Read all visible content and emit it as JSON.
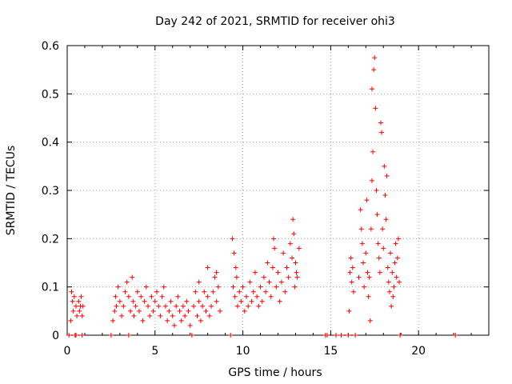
{
  "chart_data": {
    "type": "scatter",
    "title": "Day 242 of 2021, SRMTID for receiver ohi3",
    "xlabel": "GPS time / hours",
    "ylabel": "SRMTID / TECUs",
    "xlim": [
      0,
      24
    ],
    "ylim": [
      0,
      0.6
    ],
    "xticks": [
      0,
      5,
      10,
      15,
      20
    ],
    "yticks": [
      0,
      0.1,
      0.2,
      0.3,
      0.4,
      0.5,
      0.6
    ],
    "grid": true,
    "marker": "+",
    "color": "#ff0000",
    "series": [
      {
        "name": "SRMTID",
        "points": [
          [
            0.1,
            0.0
          ],
          [
            0.2,
            0.03
          ],
          [
            0.25,
            0.09
          ],
          [
            0.3,
            0.07
          ],
          [
            0.35,
            0.05
          ],
          [
            0.4,
            0.08
          ],
          [
            0.5,
            0.06
          ],
          [
            0.55,
            0.04
          ],
          [
            0.65,
            0.07
          ],
          [
            0.7,
            0.05
          ],
          [
            0.75,
            0.06
          ],
          [
            0.8,
            0.08
          ],
          [
            0.85,
            0.04
          ],
          [
            0.9,
            0.06
          ],
          [
            0.45,
            0.0
          ],
          [
            0.5,
            0.0
          ],
          [
            0.85,
            0.0
          ],
          [
            2.5,
            0.0
          ],
          [
            2.6,
            0.03
          ],
          [
            2.7,
            0.05
          ],
          [
            2.75,
            0.08
          ],
          [
            2.8,
            0.06
          ],
          [
            2.9,
            0.1
          ],
          [
            3.0,
            0.07
          ],
          [
            3.1,
            0.04
          ],
          [
            3.2,
            0.06
          ],
          [
            3.3,
            0.09
          ],
          [
            3.4,
            0.11
          ],
          [
            3.5,
            0.08
          ],
          [
            3.6,
            0.05
          ],
          [
            3.7,
            0.12
          ],
          [
            3.75,
            0.07
          ],
          [
            3.8,
            0.04
          ],
          [
            3.9,
            0.06
          ],
          [
            4.0,
            0.09
          ],
          [
            4.1,
            0.05
          ],
          [
            4.2,
            0.08
          ],
          [
            4.3,
            0.03
          ],
          [
            4.4,
            0.07
          ],
          [
            4.5,
            0.1
          ],
          [
            4.6,
            0.06
          ],
          [
            4.7,
            0.04
          ],
          [
            4.8,
            0.08
          ],
          [
            4.9,
            0.05
          ],
          [
            5.0,
            0.07
          ],
          [
            5.1,
            0.09
          ],
          [
            5.2,
            0.06
          ],
          [
            5.3,
            0.04
          ],
          [
            5.4,
            0.08
          ],
          [
            5.5,
            0.1
          ],
          [
            5.6,
            0.06
          ],
          [
            5.7,
            0.03
          ],
          [
            5.8,
            0.05
          ],
          [
            5.9,
            0.07
          ],
          [
            6.0,
            0.04
          ],
          [
            6.1,
            0.02
          ],
          [
            6.2,
            0.06
          ],
          [
            6.3,
            0.08
          ],
          [
            6.4,
            0.05
          ],
          [
            6.5,
            0.03
          ],
          [
            6.6,
            0.06
          ],
          [
            6.7,
            0.04
          ],
          [
            6.8,
            0.07
          ],
          [
            6.9,
            0.05
          ],
          [
            7.0,
            0.02
          ],
          [
            3.5,
            0.0
          ],
          [
            7.1,
            0.0
          ],
          [
            7.2,
            0.06
          ],
          [
            7.3,
            0.09
          ],
          [
            7.4,
            0.04
          ],
          [
            7.5,
            0.07
          ],
          [
            7.6,
            0.03
          ],
          [
            7.7,
            0.06
          ],
          [
            7.8,
            0.09
          ],
          [
            7.9,
            0.05
          ],
          [
            8.0,
            0.08
          ],
          [
            8.1,
            0.04
          ],
          [
            8.2,
            0.06
          ],
          [
            8.3,
            0.09
          ],
          [
            8.4,
            0.12
          ],
          [
            8.5,
            0.07
          ],
          [
            8.6,
            0.1
          ],
          [
            8.7,
            0.05
          ],
          [
            8.5,
            0.13
          ],
          [
            7.5,
            0.11
          ],
          [
            8.0,
            0.14
          ],
          [
            9.3,
            0.0
          ],
          [
            9.4,
            0.2
          ],
          [
            9.5,
            0.17
          ],
          [
            9.6,
            0.14
          ],
          [
            9.45,
            0.1
          ],
          [
            9.55,
            0.08
          ],
          [
            9.65,
            0.12
          ],
          [
            9.7,
            0.06
          ],
          [
            9.8,
            0.09
          ],
          [
            9.9,
            0.07
          ],
          [
            10.0,
            0.1
          ],
          [
            10.1,
            0.05
          ],
          [
            10.2,
            0.08
          ],
          [
            10.3,
            0.06
          ],
          [
            10.4,
            0.11
          ],
          [
            10.5,
            0.07
          ],
          [
            10.6,
            0.09
          ],
          [
            10.7,
            0.13
          ],
          [
            10.8,
            0.08
          ],
          [
            10.9,
            0.06
          ],
          [
            11.0,
            0.1
          ],
          [
            11.1,
            0.07
          ],
          [
            11.2,
            0.12
          ],
          [
            11.3,
            0.09
          ],
          [
            11.4,
            0.15
          ],
          [
            11.5,
            0.11
          ],
          [
            11.6,
            0.08
          ],
          [
            11.7,
            0.14
          ],
          [
            11.75,
            0.2
          ],
          [
            11.8,
            0.18
          ],
          [
            11.9,
            0.1
          ],
          [
            12.0,
            0.13
          ],
          [
            12.1,
            0.07
          ],
          [
            12.2,
            0.11
          ],
          [
            12.3,
            0.17
          ],
          [
            12.4,
            0.09
          ],
          [
            12.5,
            0.14
          ],
          [
            12.6,
            0.12
          ],
          [
            12.7,
            0.19
          ],
          [
            12.8,
            0.16
          ],
          [
            12.85,
            0.24
          ],
          [
            12.9,
            0.21
          ],
          [
            13.0,
            0.15
          ],
          [
            13.1,
            0.12
          ],
          [
            13.2,
            0.18
          ],
          [
            13.05,
            0.13
          ],
          [
            12.95,
            0.1
          ],
          [
            14.7,
            0.0
          ],
          [
            14.8,
            0.0
          ],
          [
            15.3,
            0.0
          ],
          [
            15.6,
            0.0
          ],
          [
            16.0,
            0.0
          ],
          [
            16.05,
            0.05
          ],
          [
            16.1,
            0.13
          ],
          [
            16.15,
            0.16
          ],
          [
            16.2,
            0.11
          ],
          [
            16.3,
            0.09
          ],
          [
            16.25,
            0.14
          ],
          [
            16.4,
            0.0
          ],
          [
            16.6,
            0.12
          ],
          [
            16.7,
            0.26
          ],
          [
            16.75,
            0.22
          ],
          [
            16.8,
            0.19
          ],
          [
            16.85,
            0.15
          ],
          [
            16.9,
            0.1
          ],
          [
            17.0,
            0.17
          ],
          [
            17.05,
            0.28
          ],
          [
            17.1,
            0.13
          ],
          [
            17.15,
            0.08
          ],
          [
            17.2,
            0.12
          ],
          [
            17.25,
            0.03
          ],
          [
            17.3,
            0.22
          ],
          [
            17.35,
            0.32
          ],
          [
            17.4,
            0.38
          ],
          [
            17.45,
            0.55
          ],
          [
            17.5,
            0.575
          ],
          [
            17.35,
            0.51
          ],
          [
            17.55,
            0.47
          ],
          [
            17.6,
            0.3
          ],
          [
            17.65,
            0.25
          ],
          [
            17.7,
            0.19
          ],
          [
            17.75,
            0.16
          ],
          [
            17.8,
            0.13
          ],
          [
            17.85,
            0.44
          ],
          [
            17.9,
            0.42
          ],
          [
            17.95,
            0.22
          ],
          [
            18.0,
            0.18
          ],
          [
            18.05,
            0.35
          ],
          [
            18.1,
            0.29
          ],
          [
            18.15,
            0.24
          ],
          [
            18.2,
            0.33
          ],
          [
            18.25,
            0.14
          ],
          [
            18.3,
            0.11
          ],
          [
            18.35,
            0.09
          ],
          [
            18.4,
            0.17
          ],
          [
            18.45,
            0.06
          ],
          [
            18.5,
            0.13
          ],
          [
            18.55,
            0.08
          ],
          [
            18.6,
            0.1
          ],
          [
            18.65,
            0.15
          ],
          [
            18.7,
            0.19
          ],
          [
            18.75,
            0.12
          ],
          [
            18.8,
            0.16
          ],
          [
            18.85,
            0.2
          ],
          [
            18.9,
            0.11
          ],
          [
            18.95,
            0.0
          ],
          [
            22.1,
            0.0
          ]
        ]
      }
    ]
  }
}
